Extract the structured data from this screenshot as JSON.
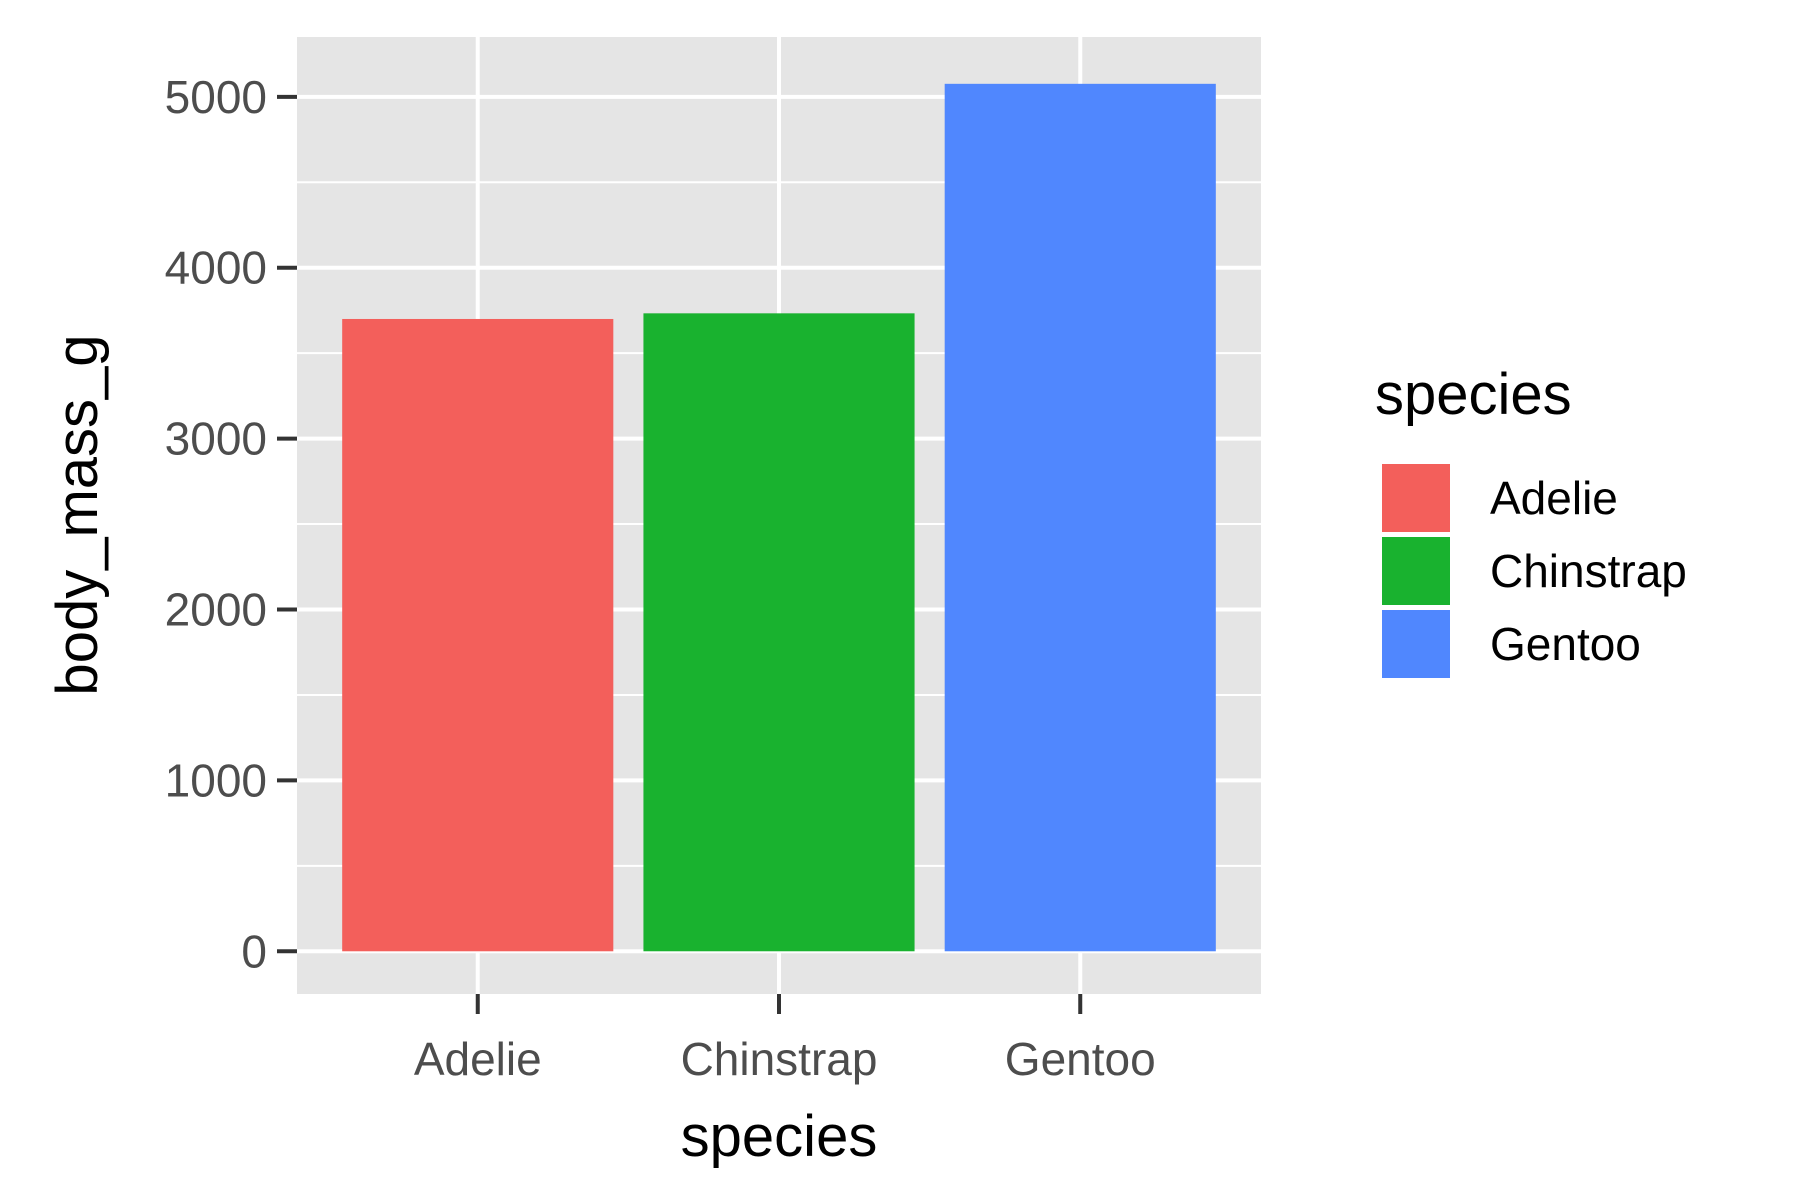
{
  "chart_data": {
    "type": "bar",
    "categories": [
      "Adelie",
      "Chinstrap",
      "Gentoo"
    ],
    "values": [
      3700,
      3733,
      5076
    ],
    "colors": [
      "#F35F5B",
      "#19B22F",
      "#5087FE"
    ],
    "xlabel": "species",
    "ylabel": "body_mass_g",
    "ylim": [
      -250,
      5350
    ],
    "yticks": [
      0,
      1000,
      2000,
      3000,
      4000,
      5000
    ],
    "ytick_labels": [
      "0",
      "1000",
      "2000",
      "3000",
      "4000",
      "5000"
    ],
    "grid": true,
    "panel_background": "#E5E5E5",
    "grid_color": "#FFFFFF",
    "legend": {
      "title": "species",
      "position": "right",
      "entries": [
        "Adelie",
        "Chinstrap",
        "Gentoo"
      ]
    }
  }
}
